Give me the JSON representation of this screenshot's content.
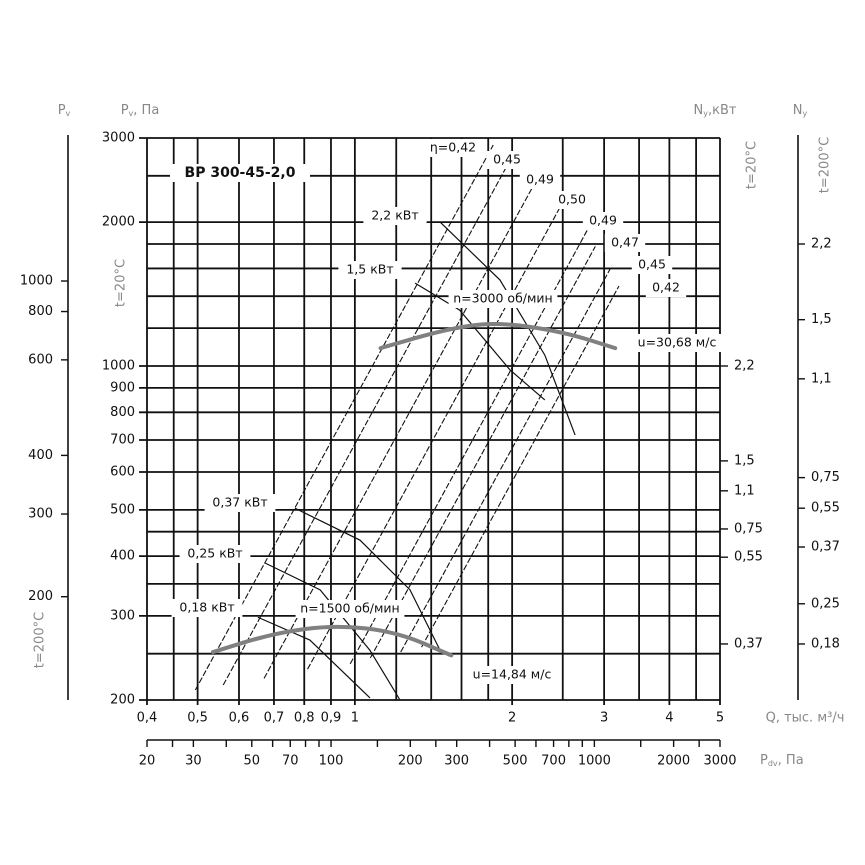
{
  "chart_data": {
    "type": "line",
    "title": "ВР 300-45-2,0",
    "x_axis": {
      "label": "Q, тыс. м³/ч",
      "scale": "log",
      "range": [
        0.4,
        5
      ],
      "grid": [
        0.4,
        0.45,
        0.5,
        0.6,
        0.7,
        0.8,
        0.9,
        1,
        1.2,
        1.4,
        1.6,
        1.8,
        2,
        2.5,
        3,
        3.5,
        4,
        4.5,
        5
      ],
      "ticks": [
        {
          "v": 0.4,
          "t": "0,4"
        },
        {
          "v": 0.5,
          "t": "0,5"
        },
        {
          "v": 0.6,
          "t": "0,6"
        },
        {
          "v": 0.7,
          "t": "0,7"
        },
        {
          "v": 0.8,
          "t": "0,8"
        },
        {
          "v": 0.9,
          "t": "0,9"
        },
        {
          "v": 1,
          "t": "1"
        },
        {
          "v": 2,
          "t": "2"
        },
        {
          "v": 3,
          "t": "3"
        },
        {
          "v": 4,
          "t": "4"
        },
        {
          "v": 5,
          "t": "5"
        }
      ]
    },
    "dynamic_pressure_axis": {
      "label_main": "P",
      "label_sub": "dv",
      "label_unit": ", Па",
      "scale": "log",
      "range": [
        20,
        3000
      ],
      "minor": [
        20,
        25,
        30,
        40,
        50,
        60,
        70,
        80,
        90,
        100,
        150,
        200,
        250,
        300,
        400,
        500,
        600,
        700,
        800,
        900,
        1000,
        1500,
        2000,
        2500,
        3000
      ],
      "ticks": [
        {
          "v": 20,
          "t": "20"
        },
        {
          "v": 30,
          "t": "30"
        },
        {
          "v": 50,
          "t": "50"
        },
        {
          "v": 70,
          "t": "70"
        },
        {
          "v": 100,
          "t": "100"
        },
        {
          "v": 200,
          "t": "200"
        },
        {
          "v": 300,
          "t": "300"
        },
        {
          "v": 500,
          "t": "500"
        },
        {
          "v": 700,
          "t": "700"
        },
        {
          "v": 1000,
          "t": "1000"
        },
        {
          "v": 2000,
          "t": "2000"
        },
        {
          "v": 3000,
          "t": "3000"
        }
      ]
    },
    "y_axis": {
      "label_main": "P",
      "label_sub": "v",
      "label_unit": ", Па",
      "temp_label": "t=20°C",
      "scale": "log",
      "range": [
        200,
        3000
      ],
      "grid": [
        200,
        250,
        300,
        350,
        400,
        450,
        500,
        600,
        700,
        800,
        900,
        1000,
        1200,
        1400,
        1600,
        1800,
        2000,
        2500,
        3000
      ],
      "ticks": [
        {
          "v": 3000,
          "t": "3000"
        },
        {
          "v": 2000,
          "t": "2000"
        },
        {
          "v": 1000,
          "t": "1000"
        },
        {
          "v": 900,
          "t": "900"
        },
        {
          "v": 800,
          "t": "800"
        },
        {
          "v": 700,
          "t": "700"
        },
        {
          "v": 600,
          "t": "600"
        },
        {
          "v": 500,
          "t": "500"
        },
        {
          "v": 400,
          "t": "400"
        },
        {
          "v": 300,
          "t": "300"
        },
        {
          "v": 200,
          "t": "200"
        }
      ]
    },
    "y_axis_outer": {
      "label_main": "P",
      "label_sub": "v",
      "temp_label": "t=200°C",
      "ticks": [
        {
          "t": "1000",
          "at_main_p": 1506
        },
        {
          "t": "800",
          "at_main_p": 1300
        },
        {
          "t": "600",
          "at_main_p": 1030
        },
        {
          "t": "400",
          "at_main_p": 650
        },
        {
          "t": "300",
          "at_main_p": 490
        },
        {
          "t": "200",
          "at_main_p": 329
        }
      ]
    },
    "power_axis_20": {
      "label_main": "N",
      "label_sub": "y",
      "label_unit": ",кВт",
      "temp_label": "t=20°C",
      "ticks": [
        {
          "t": "2,2",
          "at_main_p": 1000
        },
        {
          "t": "1,5",
          "at_main_p": 633
        },
        {
          "t": "1,1",
          "at_main_p": 548
        },
        {
          "t": "0,75",
          "at_main_p": 456
        },
        {
          "t": "0,55",
          "at_main_p": 398
        },
        {
          "t": "0,37",
          "at_main_p": 262
        }
      ]
    },
    "power_axis_200": {
      "label_main": "N",
      "label_sub": "y",
      "temp_label": "t=200°C",
      "ticks": [
        {
          "t": "2,2",
          "at_main_p": 1800
        },
        {
          "t": "1,5",
          "at_main_p": 1250
        },
        {
          "t": "1,1",
          "at_main_p": 940
        },
        {
          "t": "0,75",
          "at_main_p": 584
        },
        {
          "t": "0,55",
          "at_main_p": 504
        },
        {
          "t": "0,37",
          "at_main_p": 418
        },
        {
          "t": "0,25",
          "at_main_p": 318
        },
        {
          "t": "0,18",
          "at_main_p": 262
        }
      ]
    },
    "speed_curves": [
      {
        "label": "n=3000 об/мин",
        "tip_speed": "u=30,68 м/с",
        "points": [
          [
            1.12,
            1090
          ],
          [
            1.5,
            1195
          ],
          [
            1.87,
            1236
          ],
          [
            2.5,
            1180
          ],
          [
            3.15,
            1090
          ]
        ]
      },
      {
        "label": "n=1500 об/мин",
        "tip_speed": "u=14,84 м/с",
        "points": [
          [
            0.535,
            252
          ],
          [
            0.7,
            276
          ],
          [
            0.915,
            287
          ],
          [
            1.2,
            278
          ],
          [
            1.53,
            248
          ]
        ]
      }
    ],
    "efficiency_lines": [
      {
        "label": "η=0,42",
        "q_at_700pa": 0.904,
        "p_range": [
          210,
          2900
        ]
      },
      {
        "label": "0,45",
        "q_at_700pa": 1.01,
        "p_range": [
          215,
          2650
        ]
      },
      {
        "label": "0,49",
        "q_at_700pa": 1.19,
        "p_range": [
          222,
          2400
        ]
      },
      {
        "label": "0,50",
        "q_at_700pa": 1.41,
        "p_range": [
          232,
          2150
        ]
      },
      {
        "label": "0,49",
        "q_at_700pa": 1.68,
        "p_range": [
          238,
          1950
        ]
      },
      {
        "label": "0,47",
        "q_at_700pa": 1.81,
        "p_range": [
          245,
          1780
        ]
      },
      {
        "label": "0,45",
        "q_at_700pa": 2.04,
        "p_range": [
          252,
          1620
        ]
      },
      {
        "label": "0,42",
        "q_at_700pa": 2.21,
        "p_range": [
          258,
          1470
        ]
      }
    ],
    "power_curves": [
      {
        "label": "2,2 кВт",
        "points": [
          [
            1.456,
            2001
          ],
          [
            1.896,
            1513
          ],
          [
            2.31,
            1054
          ],
          [
            2.64,
            717
          ]
        ]
      },
      {
        "label": "1,5 кВт",
        "points": [
          [
            1.304,
            1491
          ],
          [
            1.587,
            1309
          ],
          [
            1.982,
            981
          ],
          [
            2.31,
            849
          ]
        ]
      },
      {
        "label": "0,37 кВт",
        "points": [
          [
            0.768,
            504
          ],
          [
            1.023,
            432
          ],
          [
            1.275,
            340
          ],
          [
            1.456,
            254
          ]
        ]
      },
      {
        "label": "0,25 кВт",
        "points": [
          [
            0.673,
            387
          ],
          [
            0.858,
            340
          ],
          [
            1.069,
            254
          ],
          [
            1.22,
            200
          ]
        ]
      },
      {
        "label": "0,18 кВт",
        "points": [
          [
            0.652,
            298
          ],
          [
            0.82,
            267
          ],
          [
            1.069,
            202
          ]
        ]
      }
    ],
    "colors": {
      "grid": "#111111",
      "speed_curve": "#808080",
      "axis_title": "#888888"
    }
  }
}
